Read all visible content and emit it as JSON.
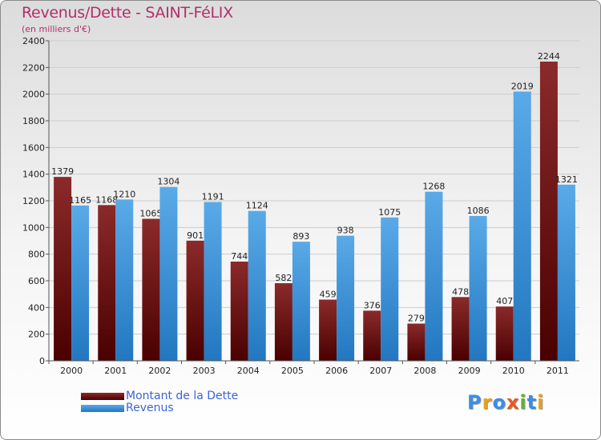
{
  "title": "Revenus/Dette - SAINT-FéLIX",
  "subtitle": "(en milliers d'€)",
  "colors": {
    "debt": "#8b1a1a",
    "debt_dark": "#4a0000",
    "revenue": "#5aaae8",
    "revenue_dark": "#2277c0",
    "axis_text": "#222222",
    "title": "#b0306a",
    "legend_text": "#3b64d8"
  },
  "legend": {
    "debt_label": "Montant de la Dette",
    "revenue_label": "Revenus"
  },
  "logo": {
    "text": "Proxiti",
    "letters": [
      {
        "char": "P",
        "color": "#3a8ee6"
      },
      {
        "char": "r",
        "color": "#e8a020"
      },
      {
        "char": "o",
        "color": "#3a8ee6"
      },
      {
        "char": "x",
        "color": "#e85a20"
      },
      {
        "char": "i",
        "color": "#60b030"
      },
      {
        "char": "t",
        "color": "#3a8ee6"
      },
      {
        "char": "i",
        "color": "#e8a020"
      }
    ]
  },
  "chart_data": {
    "type": "bar",
    "title": "Revenus/Dette - SAINT-FéLIX",
    "ylabel": "(en milliers d'€)",
    "xlabel": "",
    "categories": [
      "2000",
      "2001",
      "2002",
      "2003",
      "2004",
      "2005",
      "2006",
      "2007",
      "2008",
      "2009",
      "2010",
      "2011"
    ],
    "series": [
      {
        "name": "Montant de la Dette",
        "values": [
          1379,
          1168,
          1065,
          901,
          744,
          582,
          459,
          376,
          279,
          478,
          407,
          2244
        ]
      },
      {
        "name": "Revenus",
        "values": [
          1165,
          1210,
          1304,
          1191,
          1124,
          893,
          938,
          1075,
          1268,
          1086,
          2019,
          1321
        ]
      }
    ],
    "ylim": [
      0,
      2400
    ],
    "yticks": [
      0,
      200,
      400,
      600,
      800,
      1000,
      1200,
      1400,
      1600,
      1800,
      2000,
      2200,
      2400
    ],
    "grid": true,
    "legend_position": "bottom-left"
  }
}
